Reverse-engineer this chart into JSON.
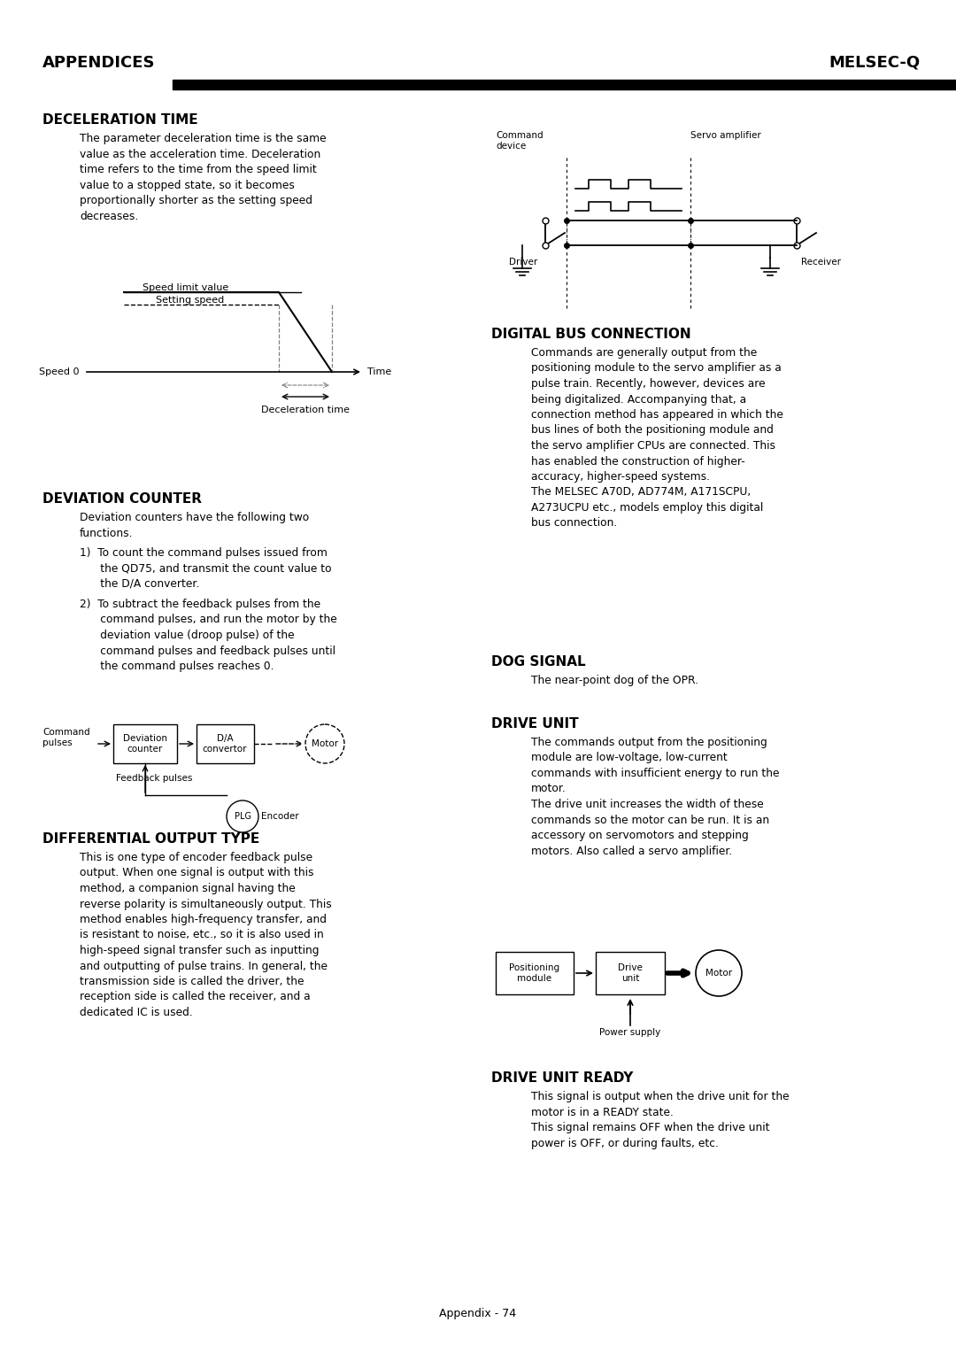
{
  "page_title_left": "APPENDICES",
  "page_title_right": "MELSEC-Q",
  "page_number": "Appendix - 74",
  "background_color": "#ffffff",
  "text_color": "#000000",
  "section1_title": "DECELERATION TIME",
  "section1_body": "The parameter deceleration time is the same\nvalue as the acceleration time. Deceleration\ntime refers to the time from the speed limit\nvalue to a stopped state, so it becomes\nproportionally shorter as the setting speed\ndecreases.",
  "section2_title": "DEVIATION COUNTER",
  "section2_body1": "Deviation counters have the following two\nfunctions.",
  "section2_item1": "1)  To count the command pulses issued from\n      the QD75, and transmit the count value to\n      the D/A converter.",
  "section2_item2": "2)  To subtract the feedback pulses from the\n      command pulses, and run the motor by the\n      deviation value (droop pulse) of the\n      command pulses and feedback pulses until\n      the command pulses reaches 0.",
  "section3_title": "DIFFERENTIAL OUTPUT TYPE",
  "section3_body": "This is one type of encoder feedback pulse\noutput. When one signal is output with this\nmethod, a companion signal having the\nreverse polarity is simultaneously output. This\nmethod enables high-frequency transfer, and\nis resistant to noise, etc., so it is also used in\nhigh-speed signal transfer such as inputting\nand outputting of pulse trains. In general, the\ntransmission side is called the driver, the\nreception side is called the receiver, and a\ndedicated IC is used.",
  "section4_title": "DIGITAL BUS CONNECTION",
  "section4_body": "Commands are generally output from the\npositioning module to the servo amplifier as a\npulse train. Recently, however, devices are\nbeing digitalized. Accompanying that, a\nconnection method has appeared in which the\nbus lines of both the positioning module and\nthe servo amplifier CPUs are connected. This\nhas enabled the construction of higher-\naccuracy, higher-speed systems.\nThe MELSEC A70D, AD774M, A171SCPU,\nA273UCPU etc., models employ this digital\nbus connection.",
  "section5_title": "DOG SIGNAL",
  "section5_body": "The near-point dog of the OPR.",
  "section6_title": "DRIVE UNIT",
  "section6_body": "The commands output from the positioning\nmodule are low-voltage, low-current\ncommands with insufficient energy to run the\nmotor.\nThe drive unit increases the width of these\ncommands so the motor can be run. It is an\naccessory on servomotors and stepping\nmotors. Also called a servo amplifier.",
  "section7_title": "DRIVE UNIT READY",
  "section7_body": "This signal is output when the drive unit for the\nmotor is in a READY state.\nThis signal remains OFF when the drive unit\npower is OFF, or during faults, etc."
}
